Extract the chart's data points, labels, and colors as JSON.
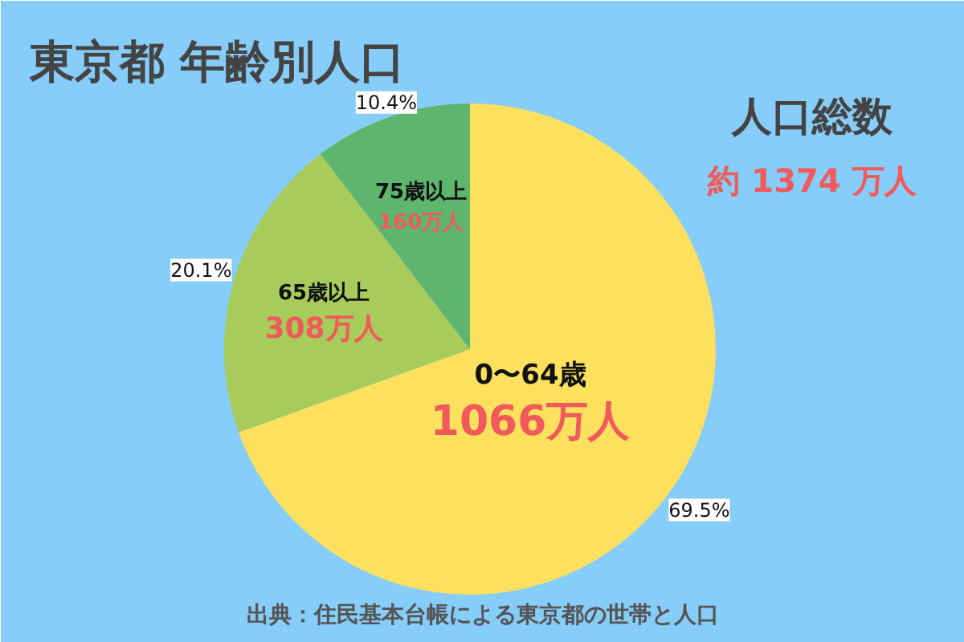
{
  "chart_data": {
    "type": "pie",
    "title": "東京都 年齢別人口",
    "categories": [
      "0〜64歳",
      "65歳以上",
      "75歳以上"
    ],
    "values": [
      69.5,
      20.1,
      10.4
    ],
    "colors": [
      "#fde05e",
      "#a8cc5c",
      "#5db56e"
    ],
    "value_labels": [
      "69.5%",
      "20.1%",
      "10.4%"
    ],
    "annotations": [
      "1066万人",
      "308万人",
      "160万人",
      "人口総数",
      "約 1374 万人",
      "出典：住民基本台帳による東京都の世帯と人口"
    ]
  }
}
